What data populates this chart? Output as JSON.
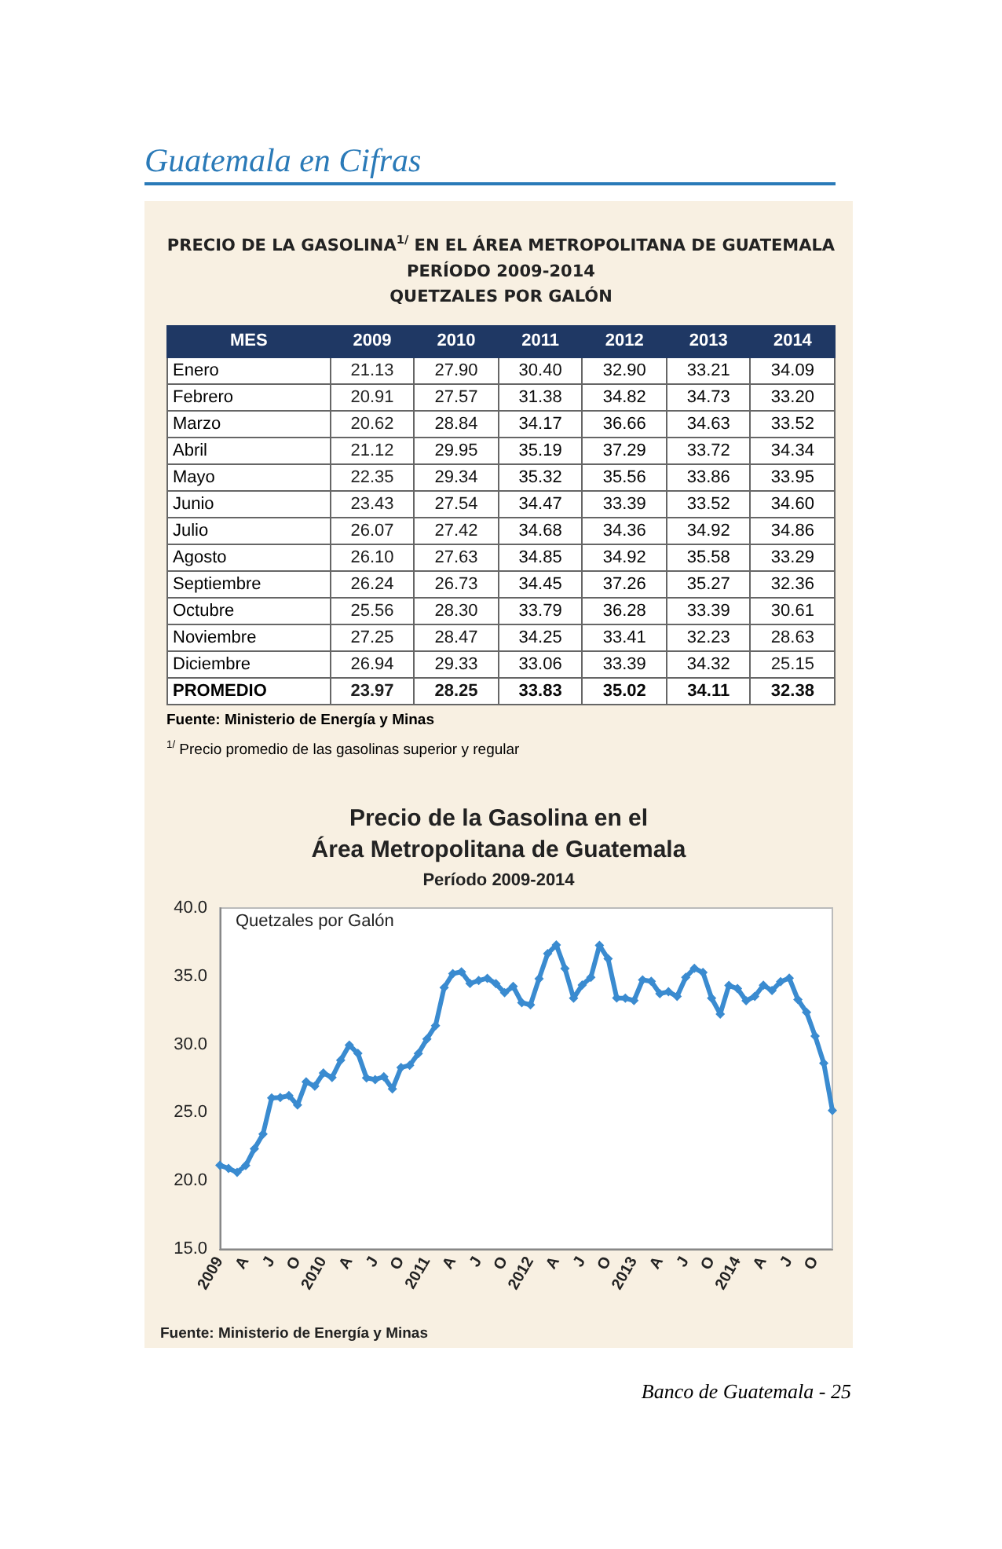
{
  "chart_data": [
    {
      "type": "heatmap",
      "title": "PRECIO DE LA GASOLINA$^{1/}$ EN EL ÁREA METROPOLITANA DE GUATEMALA",
      "subtitle": "PERÍODO 2009-2014\nQUETZALES POR GALÓN",
      "ylabel": "MES",
      "categories": [
        "2009",
        "2010",
        "2011",
        "2012",
        "2013",
        "2014"
      ],
      "y_categories": [
        "Enero",
        "Febrero",
        "Marzo",
        "Abril",
        "Mayo",
        "Junio",
        "Julio",
        "Agosto",
        "Septiembre",
        "Octubre",
        "Noviembre",
        "Diciembre",
        "PROMEDIO"
      ],
      "cells": [
        [
          21.13,
          27.9,
          30.4,
          32.9,
          33.21,
          34.09
        ],
        [
          20.91,
          27.57,
          31.38,
          34.82,
          34.73,
          33.2
        ],
        [
          20.62,
          28.84,
          34.17,
          36.66,
          34.63,
          33.52
        ],
        [
          21.12,
          29.95,
          35.19,
          37.29,
          33.72,
          34.34
        ],
        [
          22.35,
          29.34,
          35.32,
          35.56,
          33.86,
          33.95
        ],
        [
          23.43,
          27.54,
          34.47,
          33.39,
          33.52,
          34.6
        ],
        [
          26.07,
          27.42,
          34.68,
          34.36,
          34.92,
          34.86
        ],
        [
          26.1,
          27.63,
          34.85,
          34.92,
          35.58,
          33.29
        ],
        [
          26.24,
          26.73,
          34.45,
          37.26,
          35.27,
          32.36
        ],
        [
          25.56,
          28.3,
          33.79,
          36.28,
          33.39,
          30.61
        ],
        [
          27.25,
          28.47,
          34.25,
          33.41,
          32.23,
          28.63
        ],
        [
          26.94,
          29.33,
          33.06,
          33.39,
          34.32,
          25.15
        ],
        [
          23.97,
          28.25,
          33.83,
          35.02,
          34.11,
          32.38
        ]
      ],
      "cell_labels": [
        [
          "21.13",
          "27.90",
          "30.40",
          "32.90",
          "33.21",
          "34.09"
        ],
        [
          "20.91",
          "27.57",
          "31.38",
          "34.82",
          "34.73",
          "33.20"
        ],
        [
          "20.62",
          "28.84",
          "34.17",
          "36.66",
          "34.63",
          "33.52"
        ],
        [
          "21.12",
          "29.95",
          "35.19",
          "37.29",
          "33.72",
          "34.34"
        ],
        [
          "22.35",
          "29.34",
          "35.32",
          "35.56",
          "33.86",
          "33.95"
        ],
        [
          "23.43",
          "27.54",
          "34.47",
          "33.39",
          "33.52",
          "34.60"
        ],
        [
          "26.07",
          "27.42",
          "34.68",
          "34.36",
          "34.92",
          "34.86"
        ],
        [
          "26.10",
          "27.63",
          "34.85",
          "34.92",
          "35.58",
          "33.29"
        ],
        [
          "26.24",
          "26.73",
          "34.45",
          "37.26",
          "35.27",
          "32.36"
        ],
        [
          "25.56",
          "28.30",
          "33.79",
          "36.28",
          "33.39",
          "30.61"
        ],
        [
          "27.25",
          "28.47",
          "34.25",
          "33.41",
          "32.23",
          "28.63"
        ],
        [
          "26.94",
          "29.33",
          "33.06",
          "33.39",
          "34.32",
          "25.15"
        ],
        [
          "23.97",
          "28.25",
          "33.83",
          "35.02",
          "34.11",
          "32.38"
        ]
      ],
      "annotations": [
        "Guatemala en Cifras",
        "Fuente: Ministerio de Energía y Minas",
        "$^{1/}$ Precio promedio de las gasolinas superior y regular"
      ]
    },
    {
      "type": "line",
      "title": "Precio de la Gasolina en el\nÁrea Metropolitana de Guatemala",
      "subtitle": "Período 2009-2014",
      "ylabel": "Quetzales por Galón",
      "categories": [
        "2009",
        null,
        null,
        "A",
        null,
        null,
        "J",
        null,
        null,
        "O",
        null,
        null,
        "2010",
        null,
        null,
        "A",
        null,
        null,
        "J",
        null,
        null,
        "O",
        null,
        null,
        "2011",
        null,
        null,
        "A",
        null,
        null,
        "J",
        null,
        null,
        "O",
        null,
        null,
        "2012",
        null,
        null,
        "A",
        null,
        null,
        "J",
        null,
        null,
        "O",
        null,
        null,
        "2013",
        null,
        null,
        "A",
        null,
        null,
        "J",
        null,
        null,
        "O",
        null,
        null,
        "2014",
        null,
        null,
        "A",
        null,
        null,
        "J",
        null,
        null,
        "O",
        null,
        null
      ],
      "series": [
        {
          "color": "#3a8bd0",
          "values": [
            21.13,
            20.91,
            20.62,
            21.12,
            22.35,
            23.43,
            26.07,
            26.1,
            26.24,
            25.56,
            27.25,
            26.94,
            27.9,
            27.57,
            28.84,
            29.95,
            29.34,
            27.54,
            27.42,
            27.63,
            26.73,
            28.3,
            28.47,
            29.33,
            30.4,
            31.38,
            34.17,
            35.19,
            35.32,
            34.47,
            34.68,
            34.85,
            34.45,
            33.79,
            34.25,
            33.06,
            32.9,
            34.82,
            36.66,
            37.29,
            35.56,
            33.39,
            34.36,
            34.92,
            37.26,
            36.28,
            33.41,
            33.39,
            33.21,
            34.73,
            34.63,
            33.72,
            33.86,
            33.52,
            34.92,
            35.58,
            35.27,
            33.39,
            32.23,
            34.32,
            34.09,
            33.2,
            33.52,
            34.34,
            33.95,
            34.6,
            34.86,
            33.29,
            32.36,
            30.61,
            28.63,
            25.15
          ]
        }
      ],
      "ylim": [
        15,
        40
      ],
      "yticks": [
        {
          "value": 15,
          "label": "15.0"
        },
        {
          "value": 20,
          "label": "20.0"
        },
        {
          "value": 25,
          "label": "25.0"
        },
        {
          "value": 30,
          "label": "30.0"
        },
        {
          "value": 35,
          "label": "35.0"
        },
        {
          "value": 40,
          "label": "40.0"
        }
      ],
      "marker": "diamond",
      "line_style": "solid",
      "annotations": [
        "Fuente: Ministerio de Energía y Minas",
        "Banco de Guatemala - 25"
      ]
    }
  ]
}
